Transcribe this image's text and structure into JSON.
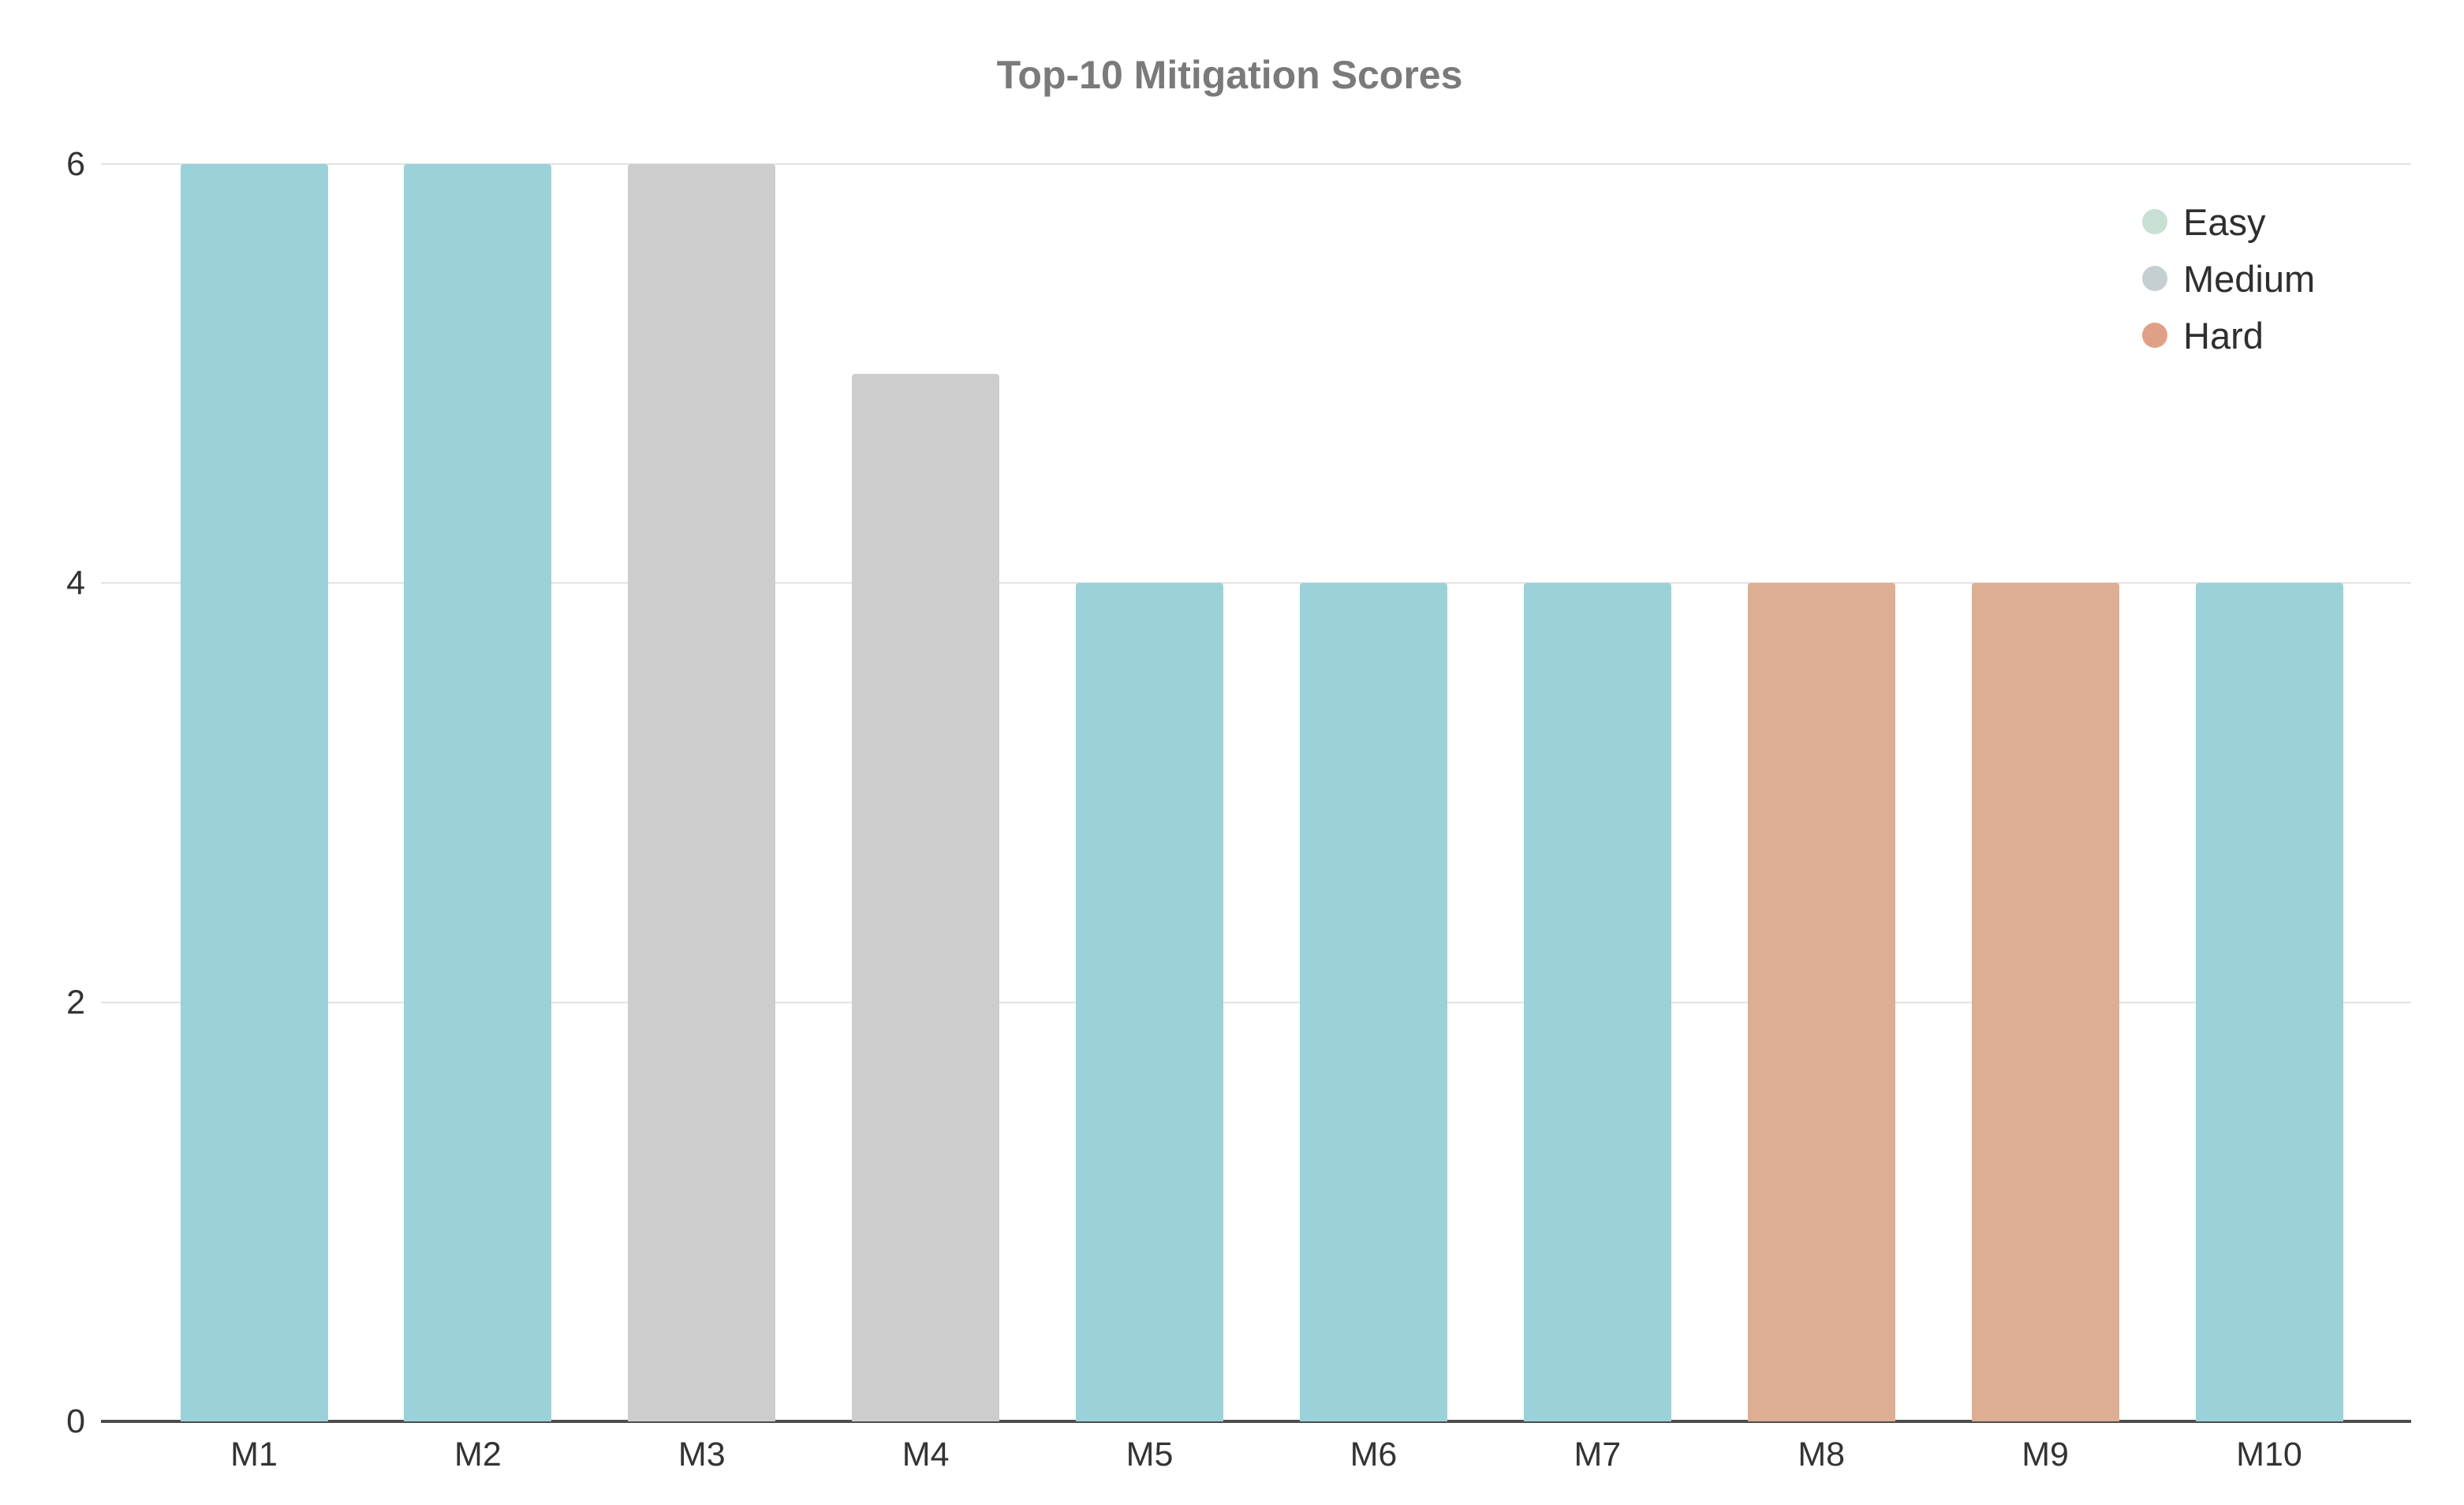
{
  "title": "Top-10 Mitigation Scores",
  "chart_data": {
    "type": "bar",
    "title": "Top-10 Mitigation Scores",
    "categories": [
      "M1",
      "M2",
      "M3",
      "M4",
      "M5",
      "M6",
      "M7",
      "M8",
      "M9",
      "M10"
    ],
    "values": [
      6,
      6,
      6,
      5,
      4,
      4,
      4,
      4,
      4,
      4
    ],
    "bar_difficulties": [
      "Easy",
      "Easy",
      "Medium",
      "Medium",
      "Easy",
      "Easy",
      "Easy",
      "Hard",
      "Hard",
      "Easy"
    ],
    "xlabel": "",
    "ylabel": "",
    "ylim": [
      0,
      6
    ],
    "yticks": [
      0,
      2,
      4,
      6
    ],
    "grid": true,
    "legend_position": "top-right",
    "bar_colors": {
      "Easy": "#9BD1D8",
      "Medium": "#CDCDCD",
      "Hard": "#DDAE94"
    }
  },
  "legend": {
    "items": [
      {
        "label": "Easy",
        "swatch_color": "#C7E0D3"
      },
      {
        "label": "Medium",
        "swatch_color": "#C5CED1"
      },
      {
        "label": "Hard",
        "swatch_color": "#E0A086"
      }
    ]
  },
  "styles": {
    "background": "#FFFFFF",
    "title_color": "#7A7A7A",
    "axis_label_color": "#333333",
    "legend_label_color": "#2F2F2F",
    "gridline_color": "#E3E3E3",
    "axis_line_color": "#4D4D4D"
  }
}
